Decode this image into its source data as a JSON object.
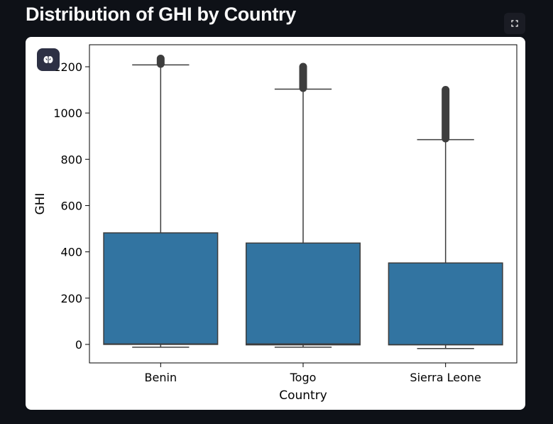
{
  "page": {
    "title": "Distribution of GHI by Country"
  },
  "icons": {
    "fullscreen": "fullscreen-icon",
    "assistant": "brain-icon"
  },
  "chart_data": {
    "type": "box",
    "xlabel": "Country",
    "ylabel": "GHI",
    "ylim": [
      -80,
      1295
    ],
    "yticks": [
      0,
      200,
      400,
      600,
      800,
      1000,
      1200
    ],
    "categories": [
      "Benin",
      "Togo",
      "Sierra Leone"
    ],
    "color": "#3274a1",
    "boxes": [
      {
        "name": "Benin",
        "whisker_low": -12,
        "q1": 0,
        "median": 2,
        "q3": 482,
        "whisker_high": 1208,
        "outliers_from": 1212,
        "outliers_to": 1235
      },
      {
        "name": "Togo",
        "whisker_low": -12,
        "q1": -2,
        "median": 2,
        "q3": 438,
        "whisker_high": 1103,
        "outliers_from": 1108,
        "outliers_to": 1200
      },
      {
        "name": "Sierra Leone",
        "whisker_low": -18,
        "q1": -2,
        "median": -1,
        "q3": 352,
        "whisker_high": 885,
        "outliers_from": 890,
        "outliers_to": 1100
      }
    ],
    "grid": false,
    "legend": "none"
  }
}
